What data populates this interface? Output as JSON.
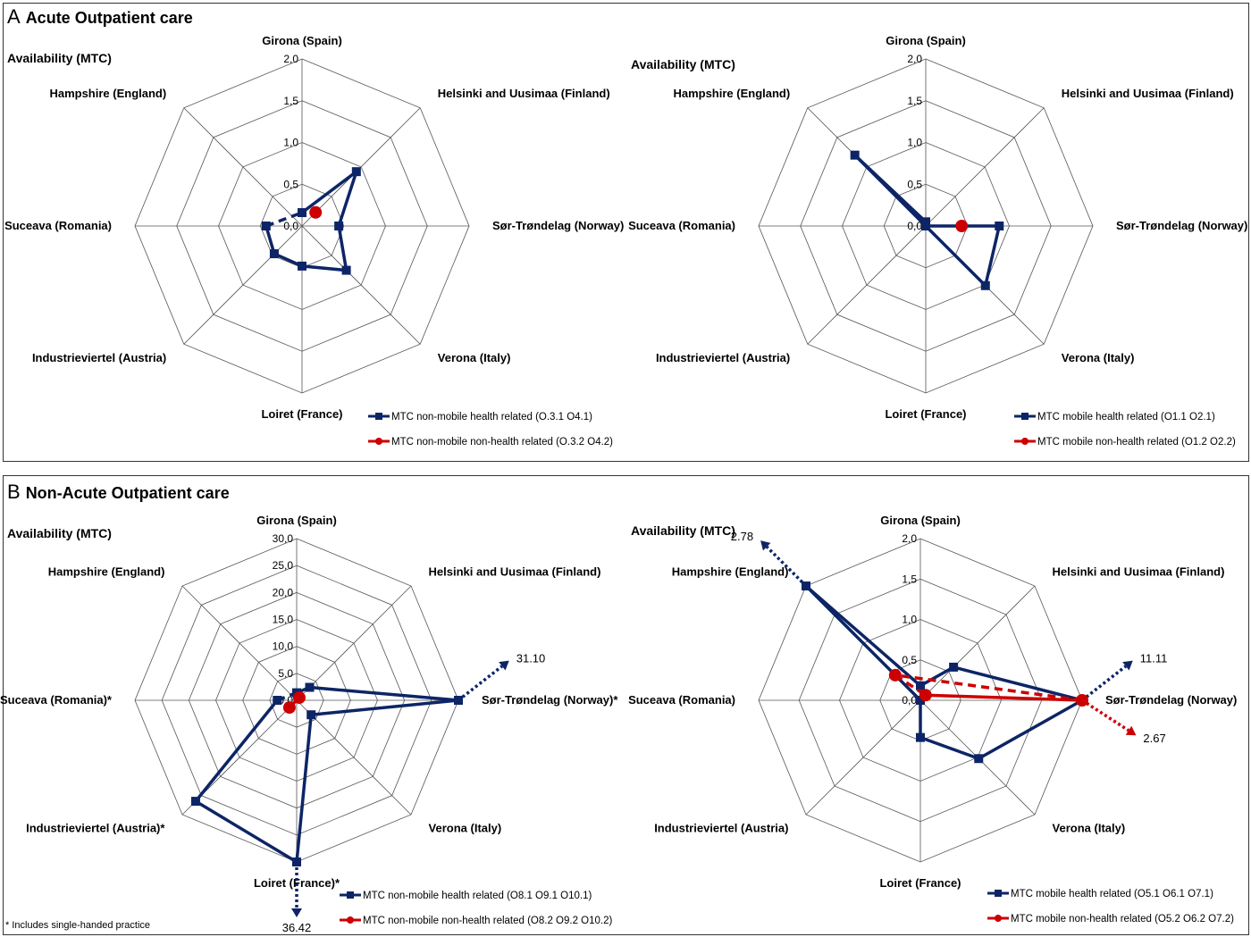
{
  "panels": [
    {
      "letter": "A",
      "title": "Acute Outpatient care"
    },
    {
      "letter": "B",
      "title": "Non-Acute Outpatient care"
    }
  ],
  "footnote": "* Includes single-handed practice",
  "colors": {
    "health": "#0d2566",
    "non_health": "#cc0000",
    "grid": "#555555"
  },
  "chart_data": [
    {
      "type": "radar",
      "panel": "A",
      "ylabel": "Availability (MTC)",
      "categories": [
        "Girona (Spain)",
        "Helsinki and Uusimaa (Finland)",
        "Sør-Trøndelag  (Norway)",
        "Verona (Italy)",
        "Loiret (France)",
        "Industrieviertel (Austria)",
        "Suceava (Romania)",
        "Hampshire (England)"
      ],
      "asterisks": [
        false,
        false,
        false,
        false,
        false,
        false,
        false,
        false
      ],
      "ticks": [
        "0,0",
        "0,5",
        "1,0",
        "1,5",
        "2,0"
      ],
      "ylim": [
        0,
        2.0
      ],
      "series": [
        {
          "name": "MTC non-mobile health related (O.3.1 O4.1)",
          "values": [
            0.16,
            0.92,
            0.44,
            0.75,
            0.48,
            0.47,
            0.43,
            null
          ]
        },
        {
          "name": "MTC non-mobile non-health related (O.3.2 O4.2)",
          "values": [
            null,
            0.23,
            null,
            null,
            null,
            null,
            null,
            null
          ]
        }
      ],
      "overflow_labels": [
        [],
        []
      ]
    },
    {
      "type": "radar",
      "panel": "A",
      "ylabel": "Availability (MTC)",
      "categories": [
        "Girona (Spain)",
        "Helsinki and Uusimaa (Finland)",
        "Sør-Trøndelag  (Norway)",
        "Verona (Italy)",
        "Loiret (France)",
        "Industrieviertel (Austria)",
        "Suceava (Romania)",
        "Hampshire (England)"
      ],
      "asterisks": [
        false,
        false,
        false,
        false,
        false,
        false,
        false,
        false
      ],
      "ticks": [
        "0,0",
        "0,5",
        "1,0",
        "1,5",
        "2,0"
      ],
      "ylim": [
        0,
        2.0
      ],
      "series": [
        {
          "name": "MTC mobile health related (O1.1 O2.1)",
          "values": [
            0.05,
            0,
            0.88,
            1.01,
            0,
            0,
            0,
            1.2
          ]
        },
        {
          "name": "MTC mobile non-health related (O1.2 O2.2)",
          "values": [
            null,
            null,
            0.43,
            null,
            null,
            null,
            null,
            null
          ]
        }
      ],
      "overflow_labels": [
        [],
        []
      ]
    },
    {
      "type": "radar",
      "panel": "B",
      "ylabel": "Availability (MTC)",
      "categories": [
        "Girona (Spain)",
        "Helsinki and Uusimaa (Finland)",
        "Sør-Trøndelag  (Norway)",
        "Verona (Italy)",
        "Loiret (France)",
        "Industrieviertel (Austria)",
        "Suceava (Romania)",
        "Hampshire (England)"
      ],
      "asterisks": [
        false,
        false,
        true,
        false,
        true,
        true,
        true,
        false
      ],
      "ticks": [
        "0,0",
        "5,0",
        "10,0",
        "15,0",
        "20,0",
        "25,0",
        "30,0"
      ],
      "ylim": [
        0,
        30.0
      ],
      "series": [
        {
          "name": "MTC non-mobile health related (O8.1 O9.1 O10.1)",
          "values": [
            1.4,
            3.4,
            31.1,
            3.8,
            36.42,
            26.5,
            3.6,
            null
          ]
        },
        {
          "name": "MTC non-mobile non-health related (O8.2 O9.2 O10.2)",
          "values": [
            null,
            0.7,
            null,
            null,
            null,
            1.9,
            null,
            null
          ]
        }
      ],
      "overflow_labels": [
        [
          "",
          "",
          "31.10",
          "",
          "36.42",
          "",
          "",
          ""
        ],
        []
      ]
    },
    {
      "type": "radar",
      "panel": "B",
      "ylabel": "Availability (MTC)",
      "categories": [
        "Girona (Spain)",
        "Helsinki and Uusimaa (Finland)",
        "Sør-Trøndelag  (Norway)",
        "Verona (Italy)",
        "Loiret (France)",
        "Industrieviertel (Austria)",
        "Suceava (Romania)",
        "Hampshire (England)"
      ],
      "asterisks": [
        false,
        false,
        false,
        false,
        false,
        false,
        false,
        false
      ],
      "ticks": [
        "0,0",
        "0,5",
        "1,0",
        "1,5",
        "2,0"
      ],
      "ylim": [
        0,
        2.0
      ],
      "series": [
        {
          "name": "MTC mobile health related (O5.1 O6.1 O7.1)",
          "values": [
            0.18,
            0.58,
            11.11,
            1.02,
            0.46,
            0,
            0,
            2.78
          ]
        },
        {
          "name": "MTC mobile non-health related (O5.2 O6.2 O7.2)",
          "values": [
            null,
            0.09,
            2.67,
            null,
            null,
            null,
            null,
            0.44
          ]
        }
      ],
      "overflow_labels": [
        [
          "",
          "",
          "11.11",
          "",
          "",
          "",
          "",
          "2.78"
        ],
        [
          "",
          "",
          "2.67",
          "",
          "",
          "",
          "",
          ""
        ]
      ]
    }
  ]
}
